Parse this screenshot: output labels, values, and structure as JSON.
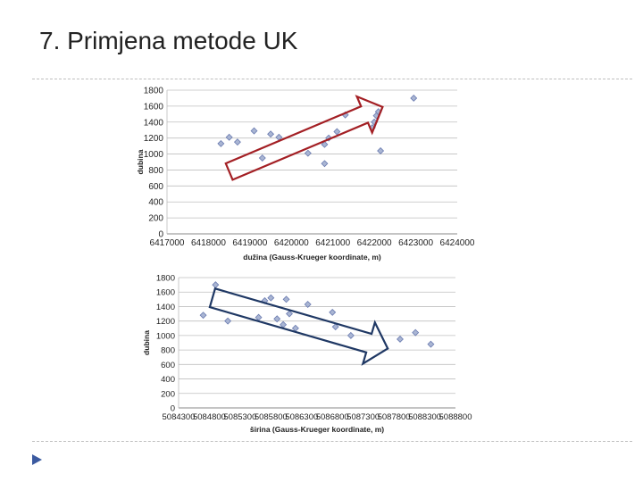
{
  "slide": {
    "title": "7. Primjena metode UK"
  },
  "colors": {
    "marker_fill": "#a9b5d3",
    "marker_stroke": "#6a7bb0",
    "arrow_top": "#a31f24",
    "arrow_bottom": "#1f3864",
    "grid": "#bfbfbf"
  },
  "chart_data": [
    {
      "type": "scatter",
      "xlabel": "dužina (Gauss-Krueger koordinate, m)",
      "ylabel": "dubina",
      "xlim": [
        6417000,
        6424000
      ],
      "ylim": [
        0,
        1800
      ],
      "xticks": [
        6417000,
        6418000,
        6419000,
        6420000,
        6421000,
        6422000,
        6423000,
        6424000
      ],
      "yticks": [
        0,
        200,
        400,
        600,
        800,
        1000,
        1200,
        1400,
        1600,
        1800
      ],
      "xtick_labels": [
        "6417000",
        "6418000",
        "6419000",
        "6420000",
        "6421000",
        "6422000",
        "6423000",
        "6424000"
      ],
      "ytick_labels": [
        "0",
        "200",
        "400",
        "600",
        "800",
        "1000",
        "1200",
        "1400",
        "1600",
        "1800"
      ],
      "grid": true,
      "legend": "none",
      "annotation": "arrow indicating increasing depth trend",
      "points": [
        [
          6418300,
          1130
        ],
        [
          6418500,
          1210
        ],
        [
          6418700,
          1150
        ],
        [
          6419100,
          1290
        ],
        [
          6419300,
          950
        ],
        [
          6419500,
          1250
        ],
        [
          6419700,
          1210
        ],
        [
          6420400,
          1010
        ],
        [
          6420800,
          1120
        ],
        [
          6420800,
          880
        ],
        [
          6420900,
          1200
        ],
        [
          6421100,
          1280
        ],
        [
          6421300,
          1490
        ],
        [
          6421950,
          1330
        ],
        [
          6422000,
          1400
        ],
        [
          6422050,
          1480
        ],
        [
          6422100,
          1530
        ],
        [
          6422150,
          1040
        ],
        [
          6422950,
          1700
        ]
      ]
    },
    {
      "type": "scatter",
      "xlabel": "širina (Gauss-Krueger koordinate, m)",
      "ylabel": "dubina",
      "xlim": [
        5084300,
        5088800
      ],
      "ylim": [
        0,
        1800
      ],
      "xticks": [
        5084300,
        5084800,
        5085300,
        5085800,
        5086300,
        5086800,
        5087300,
        5087800,
        5088300,
        5088800
      ],
      "yticks": [
        0,
        200,
        400,
        600,
        800,
        1000,
        1200,
        1400,
        1600,
        1800
      ],
      "xtick_labels": [
        "5084300",
        "5084800",
        "5085300",
        "5085800",
        "5086300",
        "5086800",
        "5087300",
        "5087800",
        "5088300",
        "5088800"
      ],
      "ytick_labels": [
        "0",
        "200",
        "400",
        "600",
        "800",
        "1000",
        "1200",
        "1400",
        "1600",
        "1800"
      ],
      "grid": true,
      "legend": "none",
      "annotation": "arrow indicating decreasing depth trend",
      "points": [
        [
          5084700,
          1280
        ],
        [
          5084900,
          1700
        ],
        [
          5085100,
          1200
        ],
        [
          5085600,
          1250
        ],
        [
          5085700,
          1480
        ],
        [
          5085800,
          1520
        ],
        [
          5085900,
          1230
        ],
        [
          5086000,
          1150
        ],
        [
          5086050,
          1500
        ],
        [
          5086100,
          1300
        ],
        [
          5086200,
          1100
        ],
        [
          5086400,
          1430
        ],
        [
          5086800,
          1320
        ],
        [
          5086850,
          1120
        ],
        [
          5087100,
          1000
        ],
        [
          5087900,
          950
        ],
        [
          5088150,
          1040
        ],
        [
          5088400,
          880
        ]
      ]
    }
  ]
}
